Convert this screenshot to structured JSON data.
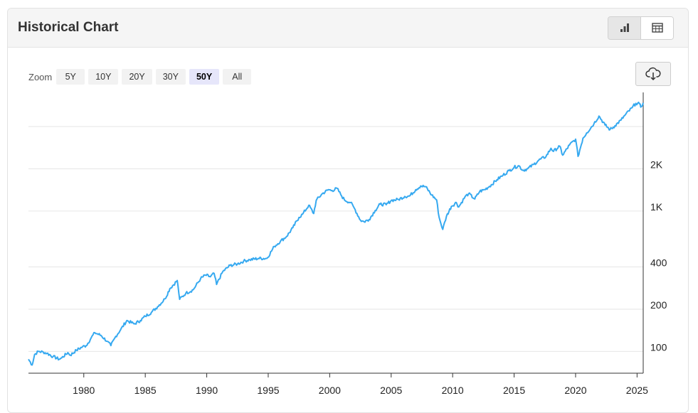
{
  "header": {
    "title": "Historical Chart"
  },
  "view_toggle": {
    "chart_icon": "bar-chart-icon",
    "table_icon": "table-icon"
  },
  "zoom": {
    "label": "Zoom",
    "options": [
      "5Y",
      "10Y",
      "20Y",
      "30Y",
      "50Y",
      "All"
    ],
    "selected": "50Y"
  },
  "download": {
    "icon": "cloud-download-icon"
  },
  "colors": {
    "line": "#36a9f0",
    "grid": "#e6e6e6",
    "axis": "#333333",
    "zoom_active": "#e6e6fa"
  },
  "chart_data": {
    "type": "line",
    "scale": "log",
    "xlabel": "",
    "ylabel": "",
    "xlim": [
      1975.5,
      2025.5
    ],
    "ylim": [
      70,
      7000
    ],
    "x_ticks": [
      1980,
      1985,
      1990,
      1995,
      2000,
      2005,
      2010,
      2015,
      2020,
      2025
    ],
    "x_tick_labels": [
      "1980",
      "1985",
      "1990",
      "1995",
      "2000",
      "2005",
      "2010",
      "2015",
      "2020",
      "2025"
    ],
    "y_ticks": [
      100,
      200,
      400,
      1000,
      2000
    ],
    "y_tick_labels": [
      "100",
      "200",
      "400",
      "1K",
      "2K"
    ],
    "grid_values": [
      100,
      200,
      400,
      1000,
      2000,
      4000
    ],
    "grid": true,
    "series": [
      {
        "x": [
          1975.5,
          1975.8,
          1976.0,
          1976.3,
          1976.7,
          1977.0,
          1977.5,
          1978.0,
          1978.2,
          1978.7,
          1978.9,
          1979.4,
          1979.9,
          1980.2,
          1980.6,
          1980.9,
          1981.4,
          1981.9,
          1982.2,
          1982.6,
          1983.0,
          1983.5,
          1984.1,
          1984.6,
          1985.0,
          1985.5,
          1986.0,
          1986.6,
          1987.0,
          1987.6,
          1987.8,
          1988.3,
          1988.9,
          1989.5,
          1989.9,
          1990.3,
          1990.6,
          1990.8,
          1991.3,
          1991.9,
          1992.5,
          1993.0,
          1993.5,
          1994.2,
          1994.9,
          1995.5,
          1996.0,
          1996.5,
          1997.0,
          1997.5,
          1997.8,
          1998.3,
          1998.7,
          1998.9,
          1999.4,
          1999.9,
          2000.2,
          2000.6,
          2000.9,
          2001.2,
          2001.7,
          2002.0,
          2002.5,
          2002.8,
          2003.2,
          2003.7,
          2004.1,
          2004.6,
          2005.0,
          2005.6,
          2006.1,
          2006.5,
          2007.0,
          2007.4,
          2007.8,
          2008.3,
          2008.7,
          2008.9,
          2009.2,
          2009.5,
          2009.9,
          2010.3,
          2010.5,
          2011.0,
          2011.3,
          2011.8,
          2012.2,
          2012.6,
          2013.0,
          2013.6,
          2014.1,
          2014.6,
          2015.0,
          2015.4,
          2015.7,
          2016.1,
          2016.6,
          2017.0,
          2017.6,
          2018.0,
          2018.2,
          2018.7,
          2018.95,
          2019.5,
          2020.0,
          2020.2,
          2020.6,
          2020.9,
          2021.5,
          2021.9,
          2022.4,
          2022.8,
          2023.2,
          2023.7,
          2024.0,
          2024.6,
          2024.9,
          2025.2,
          2025.3,
          2025.5
        ],
        "y": [
          88,
          80,
          95,
          100,
          99,
          97,
          92,
          88,
          90,
          98,
          94,
          102,
          108,
          110,
          125,
          136,
          130,
          118,
          110,
          128,
          143,
          166,
          157,
          166,
          178,
          190,
          208,
          237,
          280,
          320,
          235,
          260,
          275,
          330,
          350,
          340,
          360,
          300,
          370,
          410,
          420,
          440,
          450,
          460,
          460,
          560,
          610,
          660,
          760,
          900,
          950,
          1100,
          960,
          1190,
          1330,
          1420,
          1400,
          1450,
          1310,
          1200,
          1150,
          1050,
          860,
          840,
          870,
          1010,
          1120,
          1110,
          1190,
          1210,
          1270,
          1280,
          1420,
          1510,
          1490,
          1300,
          1200,
          900,
          740,
          920,
          1080,
          1150,
          1070,
          1260,
          1330,
          1220,
          1380,
          1420,
          1500,
          1670,
          1800,
          1940,
          2050,
          2100,
          1950,
          2000,
          2150,
          2300,
          2450,
          2800,
          2660,
          2900,
          2500,
          2950,
          3250,
          2450,
          3300,
          3600,
          4200,
          4750,
          4100,
          3800,
          4050,
          4450,
          4800,
          5450,
          5850,
          5800,
          5500,
          5900
        ]
      }
    ]
  }
}
